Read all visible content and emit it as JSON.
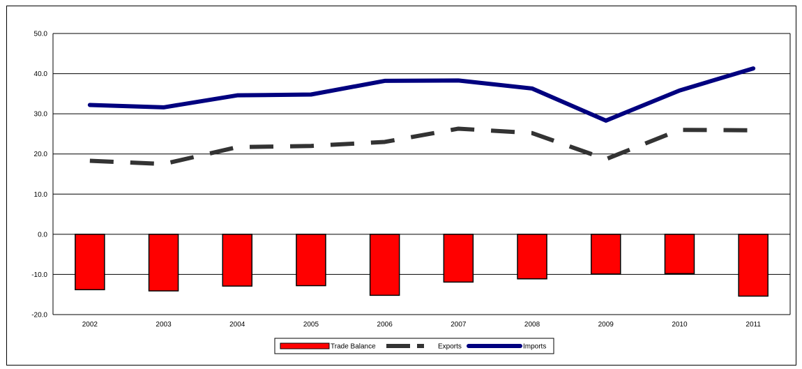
{
  "chart_data": {
    "type": "bar",
    "title": "",
    "xlabel": "",
    "ylabel": "",
    "categories": [
      "2002",
      "2003",
      "2004",
      "2005",
      "2006",
      "2007",
      "2008",
      "2009",
      "2010",
      "2011"
    ],
    "ylim": [
      -20,
      50
    ],
    "yticks": [
      50,
      40,
      30,
      20,
      10,
      0,
      -10,
      -20
    ],
    "ytick_labels": [
      "50.0",
      "40.0",
      "30.0",
      "20.0",
      "10.0",
      "0.0",
      "-10.0",
      "-20.0"
    ],
    "grid": true,
    "legend_position": "bottom",
    "series": [
      {
        "name": "Trade Balance",
        "kind": "bar",
        "color": "#ff0000",
        "values": [
          -13.8,
          -14.1,
          -12.9,
          -12.8,
          -15.2,
          -11.9,
          -11.1,
          -9.9,
          -9.8,
          -15.4
        ]
      },
      {
        "name": "Exports",
        "kind": "line",
        "style": "dashed",
        "color": "#333333",
        "values": [
          18.3,
          17.5,
          21.7,
          22.0,
          23.0,
          26.3,
          25.2,
          18.7,
          26.0,
          25.9
        ]
      },
      {
        "name": "Imports",
        "kind": "line",
        "style": "solid",
        "color": "#00007f",
        "values": [
          32.2,
          31.6,
          34.6,
          34.8,
          38.2,
          38.3,
          36.3,
          28.3,
          35.8,
          41.3
        ]
      }
    ]
  }
}
